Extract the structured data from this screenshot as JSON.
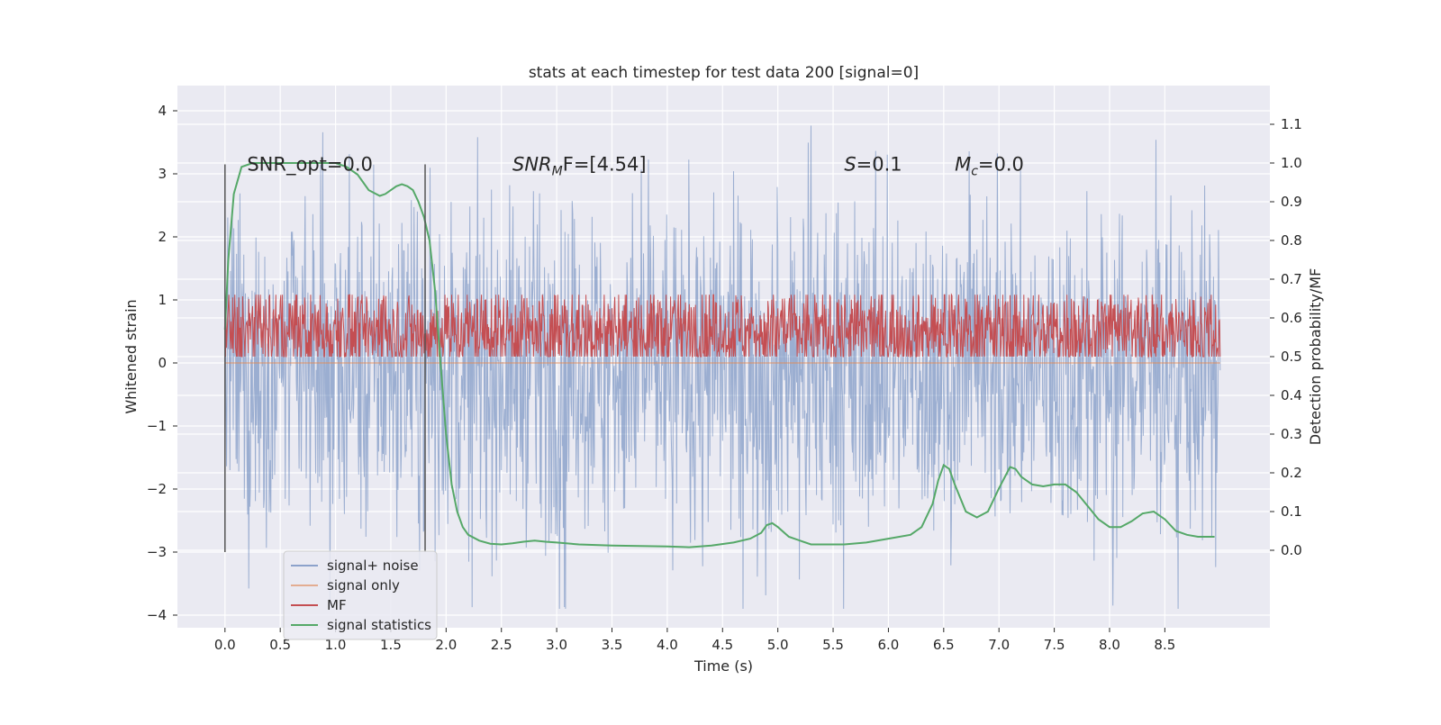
{
  "chart_data": {
    "type": "line",
    "title": "stats at each timestep for test data 200 [signal=0]",
    "xlabel": "Time (s)",
    "ylabel": "Whitened strain",
    "ylabel_right": "Detection probability/MF",
    "xlim": [
      -0.43,
      9.45
    ],
    "ylim": [
      -4.2,
      4.4
    ],
    "ylim_right": [
      -0.2,
      1.2
    ],
    "x_ticks": [
      "0.0",
      "0.5",
      "1.0",
      "1.5",
      "2.0",
      "2.5",
      "3.0",
      "3.5",
      "4.0",
      "4.5",
      "5.0",
      "5.5",
      "6.0",
      "6.5",
      "7.0",
      "7.5",
      "8.0",
      "8.5"
    ],
    "x_tick_values": [
      0,
      0.5,
      1,
      1.5,
      2,
      2.5,
      3,
      3.5,
      4,
      4.5,
      5,
      5.5,
      6,
      6.5,
      7,
      7.5,
      8,
      8.5
    ],
    "y_ticks": [
      "4",
      "3",
      "2",
      "1",
      "0",
      "−1",
      "−2",
      "−3",
      "−4"
    ],
    "y_tick_values": [
      4,
      3,
      2,
      1,
      0,
      -1,
      -2,
      -3,
      -4
    ],
    "y_ticks_right": [
      "1.1",
      "1.0",
      "0.9",
      "0.8",
      "0.7",
      "0.6",
      "0.5",
      "0.4",
      "0.3",
      "0.2",
      "0.1",
      "0.0"
    ],
    "y_tick_values_right": [
      1.1,
      1.0,
      0.9,
      0.8,
      0.7,
      0.6,
      0.5,
      0.4,
      0.3,
      0.2,
      0.1,
      0.0
    ],
    "grid": true,
    "legend_position": "lower-left",
    "series": [
      {
        "name": "signal+ noise",
        "color": "#4c72b0",
        "axis": "left",
        "kind": "noise",
        "x_range": [
          0,
          9.0
        ],
        "typical_range": [
          -1.5,
          1.3
        ],
        "peak_range": [
          -3.9,
          4.0
        ]
      },
      {
        "name": "signal only",
        "color": "#dd8452",
        "axis": "left",
        "kind": "flat",
        "x_range": [
          0,
          9.0
        ],
        "value": 0
      },
      {
        "name": "MF",
        "color": "#c44e52",
        "axis": "right",
        "kind": "noise",
        "x_range": [
          0,
          9.0
        ],
        "typical_range": [
          0.5,
          0.63
        ],
        "peak_range": [
          0.5,
          0.66
        ]
      },
      {
        "name": "signal statistics",
        "color": "#55a868",
        "axis": "right",
        "kind": "line",
        "x": [
          0,
          0.03,
          0.08,
          0.15,
          0.25,
          0.4,
          0.6,
          0.8,
          1.0,
          1.1,
          1.2,
          1.3,
          1.4,
          1.45,
          1.5,
          1.55,
          1.6,
          1.65,
          1.7,
          1.75,
          1.8,
          1.85,
          1.9,
          1.95,
          2.0,
          2.05,
          2.1,
          2.15,
          2.2,
          2.3,
          2.4,
          2.5,
          2.6,
          2.7,
          2.8,
          2.9,
          3.0,
          3.2,
          3.5,
          4.0,
          4.2,
          4.4,
          4.6,
          4.75,
          4.85,
          4.9,
          4.95,
          5.0,
          5.1,
          5.3,
          5.6,
          5.8,
          6.0,
          6.2,
          6.3,
          6.4,
          6.45,
          6.5,
          6.55,
          6.6,
          6.7,
          6.8,
          6.9,
          7.0,
          7.1,
          7.15,
          7.2,
          7.3,
          7.4,
          7.5,
          7.6,
          7.7,
          7.8,
          7.9,
          8.0,
          8.1,
          8.2,
          8.3,
          8.4,
          8.5,
          8.6,
          8.7,
          8.8,
          8.95
        ],
        "y": [
          0.57,
          0.75,
          0.92,
          0.99,
          1.0,
          1.0,
          1.0,
          1.0,
          1.0,
          0.99,
          0.97,
          0.93,
          0.915,
          0.92,
          0.93,
          0.94,
          0.945,
          0.94,
          0.93,
          0.9,
          0.86,
          0.8,
          0.67,
          0.48,
          0.3,
          0.17,
          0.1,
          0.06,
          0.04,
          0.025,
          0.017,
          0.015,
          0.018,
          0.022,
          0.025,
          0.022,
          0.02,
          0.015,
          0.012,
          0.01,
          0.008,
          0.012,
          0.02,
          0.03,
          0.045,
          0.065,
          0.07,
          0.06,
          0.035,
          0.015,
          0.015,
          0.02,
          0.03,
          0.04,
          0.06,
          0.12,
          0.18,
          0.22,
          0.21,
          0.17,
          0.1,
          0.085,
          0.1,
          0.16,
          0.215,
          0.21,
          0.19,
          0.17,
          0.165,
          0.17,
          0.17,
          0.15,
          0.115,
          0.08,
          0.06,
          0.06,
          0.075,
          0.095,
          0.1,
          0.08,
          0.05,
          0.04,
          0.035,
          0.035
        ]
      }
    ],
    "vertical_markers": [
      {
        "x": 0.0,
        "y_range": [
          -3.0,
          3.15
        ],
        "color": "#555555"
      },
      {
        "x": 1.81,
        "y_range": [
          -3.0,
          3.15
        ],
        "color": "#555555"
      }
    ],
    "annotations": [
      {
        "text": "SNR_opt=0.0",
        "x": 0.2,
        "y": 3.15,
        "italic": false
      },
      {
        "text": "SNR",
        "sub": "M",
        "tail": "F=[4.54]",
        "x": 2.6,
        "y": 3.15,
        "italic_head": true
      },
      {
        "text": "S",
        "tail": "=0.1",
        "x": 5.6,
        "y": 3.15,
        "italic_head": true
      },
      {
        "text": "M",
        "sub": "c",
        "tail": "=0.0",
        "x": 6.6,
        "y": 3.15,
        "italic_head": true
      }
    ]
  }
}
